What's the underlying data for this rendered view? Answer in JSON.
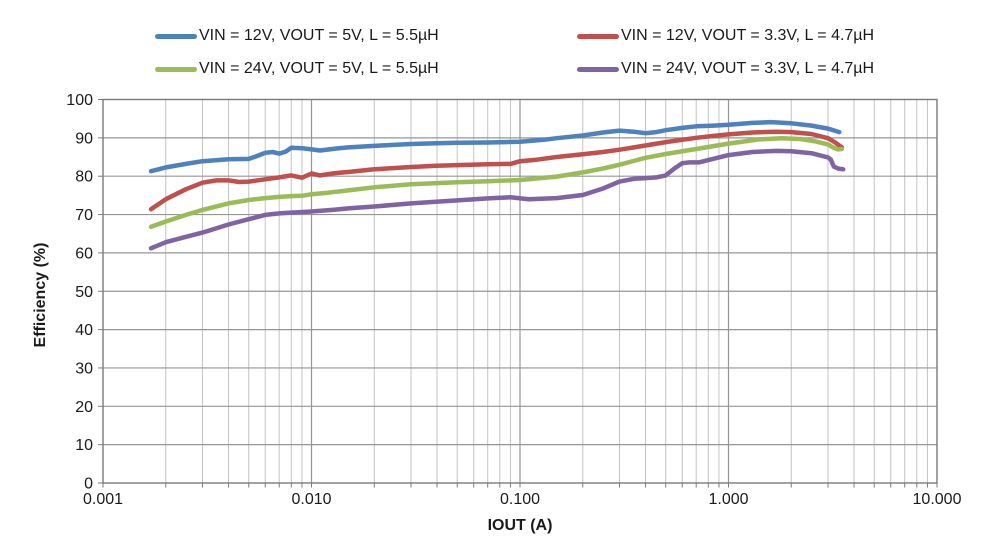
{
  "style": {
    "grid_minor": "#c3c3c3",
    "grid_major": "#969696",
    "border": "#7a7a7a",
    "text": "#1a1a1a",
    "background": "#ffffff"
  },
  "chart_data": {
    "type": "line",
    "title": "",
    "xlabel": "IOUT (A)",
    "ylabel": "Efficiency (%)",
    "x_scale": "log",
    "xlim": [
      0.001,
      10
    ],
    "ylim": [
      0,
      100
    ],
    "grid": {
      "horizontal_major": true,
      "vertical_log_minor": true
    },
    "legend_position": "top",
    "x_ticks": [
      {
        "value": 0.001,
        "label": "0.001"
      },
      {
        "value": 0.01,
        "label": "0.010"
      },
      {
        "value": 0.1,
        "label": "0.100"
      },
      {
        "value": 1,
        "label": "1.000"
      },
      {
        "value": 10,
        "label": "10.000"
      }
    ],
    "y_ticks": [
      0,
      10,
      20,
      30,
      40,
      50,
      60,
      70,
      80,
      90,
      100
    ],
    "series": [
      {
        "name": "VIN = 12V, VOUT = 5V, L = 5.5µH",
        "color": "#4f81bd",
        "points": [
          [
            0.0017,
            81.3
          ],
          [
            0.002,
            82.3
          ],
          [
            0.0025,
            83.2
          ],
          [
            0.003,
            83.9
          ],
          [
            0.004,
            84.4
          ],
          [
            0.005,
            84.5
          ],
          [
            0.0055,
            85.3
          ],
          [
            0.006,
            86.1
          ],
          [
            0.0065,
            86.3
          ],
          [
            0.007,
            85.9
          ],
          [
            0.0075,
            86.4
          ],
          [
            0.008,
            87.4
          ],
          [
            0.009,
            87.3
          ],
          [
            0.01,
            87.0
          ],
          [
            0.011,
            86.7
          ],
          [
            0.013,
            87.2
          ],
          [
            0.015,
            87.5
          ],
          [
            0.02,
            87.9
          ],
          [
            0.03,
            88.4
          ],
          [
            0.04,
            88.6
          ],
          [
            0.05,
            88.7
          ],
          [
            0.07,
            88.8
          ],
          [
            0.1,
            89.0
          ],
          [
            0.13,
            89.5
          ],
          [
            0.15,
            89.9
          ],
          [
            0.2,
            90.6
          ],
          [
            0.25,
            91.4
          ],
          [
            0.3,
            91.9
          ],
          [
            0.35,
            91.6
          ],
          [
            0.4,
            91.2
          ],
          [
            0.45,
            91.5
          ],
          [
            0.5,
            92.0
          ],
          [
            0.6,
            92.6
          ],
          [
            0.7,
            93.0
          ],
          [
            0.85,
            93.2
          ],
          [
            1.0,
            93.4
          ],
          [
            1.3,
            93.9
          ],
          [
            1.6,
            94.1
          ],
          [
            2.0,
            93.8
          ],
          [
            2.5,
            93.2
          ],
          [
            3.0,
            92.4
          ],
          [
            3.4,
            91.5
          ]
        ]
      },
      {
        "name": "VIN = 12V, VOUT = 3.3V, L = 4.7µH",
        "color": "#c0504d",
        "points": [
          [
            0.0017,
            71.4
          ],
          [
            0.002,
            74.0
          ],
          [
            0.0025,
            76.6
          ],
          [
            0.003,
            78.3
          ],
          [
            0.0035,
            78.9
          ],
          [
            0.004,
            78.9
          ],
          [
            0.0045,
            78.5
          ],
          [
            0.005,
            78.6
          ],
          [
            0.006,
            79.2
          ],
          [
            0.007,
            79.7
          ],
          [
            0.008,
            80.2
          ],
          [
            0.009,
            79.6
          ],
          [
            0.01,
            80.7
          ],
          [
            0.011,
            80.2
          ],
          [
            0.013,
            80.8
          ],
          [
            0.015,
            81.1
          ],
          [
            0.02,
            81.8
          ],
          [
            0.03,
            82.4
          ],
          [
            0.04,
            82.7
          ],
          [
            0.05,
            82.9
          ],
          [
            0.07,
            83.1
          ],
          [
            0.09,
            83.2
          ],
          [
            0.1,
            83.9
          ],
          [
            0.12,
            84.3
          ],
          [
            0.15,
            85.0
          ],
          [
            0.2,
            85.7
          ],
          [
            0.25,
            86.3
          ],
          [
            0.3,
            86.9
          ],
          [
            0.4,
            88.0
          ],
          [
            0.5,
            88.9
          ],
          [
            0.7,
            90.0
          ],
          [
            0.85,
            90.5
          ],
          [
            1.0,
            90.9
          ],
          [
            1.3,
            91.4
          ],
          [
            1.7,
            91.6
          ],
          [
            2.0,
            91.5
          ],
          [
            2.5,
            91.0
          ],
          [
            3.0,
            89.9
          ],
          [
            3.25,
            88.8
          ],
          [
            3.5,
            87.5
          ]
        ]
      },
      {
        "name": "VIN = 24V, VOUT = 5V, L = 5.5µH",
        "color": "#9bbb59",
        "points": [
          [
            0.0017,
            66.8
          ],
          [
            0.002,
            68.2
          ],
          [
            0.0025,
            69.9
          ],
          [
            0.003,
            71.2
          ],
          [
            0.004,
            72.9
          ],
          [
            0.005,
            73.8
          ],
          [
            0.006,
            74.3
          ],
          [
            0.007,
            74.6
          ],
          [
            0.008,
            74.8
          ],
          [
            0.009,
            74.9
          ],
          [
            0.01,
            75.3
          ],
          [
            0.012,
            75.7
          ],
          [
            0.015,
            76.3
          ],
          [
            0.02,
            77.1
          ],
          [
            0.03,
            77.9
          ],
          [
            0.04,
            78.2
          ],
          [
            0.05,
            78.4
          ],
          [
            0.07,
            78.7
          ],
          [
            0.1,
            79.0
          ],
          [
            0.15,
            79.9
          ],
          [
            0.2,
            81.0
          ],
          [
            0.25,
            82.0
          ],
          [
            0.3,
            83.0
          ],
          [
            0.4,
            84.8
          ],
          [
            0.5,
            85.8
          ],
          [
            0.7,
            87.1
          ],
          [
            1.0,
            88.5
          ],
          [
            1.4,
            89.6
          ],
          [
            1.8,
            89.9
          ],
          [
            2.2,
            89.7
          ],
          [
            2.6,
            89.1
          ],
          [
            3.0,
            88.3
          ],
          [
            3.2,
            87.4
          ],
          [
            3.35,
            87.0
          ],
          [
            3.5,
            87.1
          ]
        ]
      },
      {
        "name": "VIN = 24V, VOUT = 3.3V, L = 4.7µH",
        "color": "#8064a2",
        "points": [
          [
            0.0017,
            61.2
          ],
          [
            0.002,
            62.8
          ],
          [
            0.0025,
            64.2
          ],
          [
            0.003,
            65.3
          ],
          [
            0.004,
            67.4
          ],
          [
            0.005,
            68.8
          ],
          [
            0.0055,
            69.4
          ],
          [
            0.006,
            69.9
          ],
          [
            0.007,
            70.3
          ],
          [
            0.008,
            70.5
          ],
          [
            0.01,
            70.8
          ],
          [
            0.013,
            71.3
          ],
          [
            0.015,
            71.6
          ],
          [
            0.02,
            72.1
          ],
          [
            0.03,
            72.9
          ],
          [
            0.05,
            73.7
          ],
          [
            0.07,
            74.2
          ],
          [
            0.09,
            74.5
          ],
          [
            0.11,
            74.0
          ],
          [
            0.15,
            74.3
          ],
          [
            0.2,
            75.1
          ],
          [
            0.25,
            76.8
          ],
          [
            0.3,
            78.6
          ],
          [
            0.35,
            79.3
          ],
          [
            0.4,
            79.5
          ],
          [
            0.45,
            79.7
          ],
          [
            0.5,
            80.2
          ],
          [
            0.55,
            82.0
          ],
          [
            0.6,
            83.4
          ],
          [
            0.65,
            83.6
          ],
          [
            0.72,
            83.6
          ],
          [
            0.8,
            84.2
          ],
          [
            0.9,
            84.9
          ],
          [
            1.0,
            85.5
          ],
          [
            1.3,
            86.3
          ],
          [
            1.7,
            86.6
          ],
          [
            2.0,
            86.5
          ],
          [
            2.5,
            86.0
          ],
          [
            3.0,
            84.9
          ],
          [
            3.1,
            84.3
          ],
          [
            3.2,
            82.5
          ],
          [
            3.35,
            82.0
          ],
          [
            3.55,
            81.8
          ]
        ]
      }
    ]
  }
}
